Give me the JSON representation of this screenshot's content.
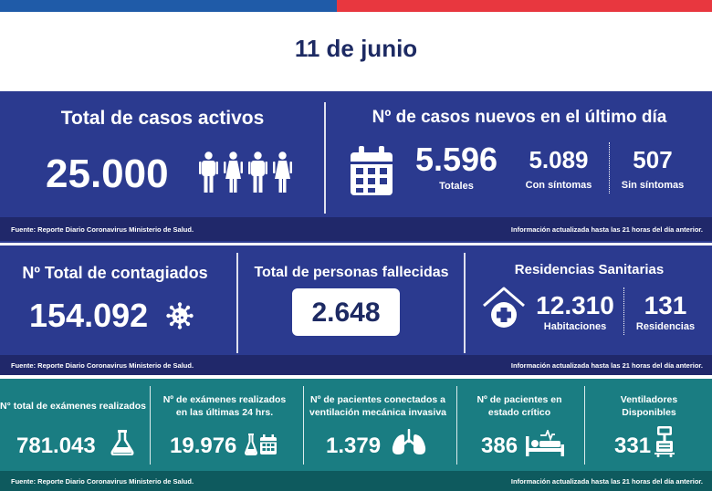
{
  "date": "11 de junio",
  "source_text": "Fuente: Reporte Diario Coronavirus Ministerio de Salud.",
  "updated_text": "Información actualizada hasta las 21 horas  del día anterior.",
  "active": {
    "title": "Total de casos activos",
    "value": "25.000",
    "icon": "people-icon"
  },
  "new_cases": {
    "title": "Nº de casos nuevos en el último día",
    "icon": "calendar-icon",
    "total_value": "5.596",
    "total_label": "Totales",
    "symptomatic_value": "5.089",
    "symptomatic_label": "Con síntomas",
    "asymptomatic_value": "507",
    "asymptomatic_label": "Sin síntomas"
  },
  "infected": {
    "title": "Nº Total de contagiados",
    "value": "154.092",
    "icon": "virus-icon"
  },
  "deaths": {
    "title": "Total de personas fallecidas",
    "value": "2.648"
  },
  "residences": {
    "title": "Residencias Sanitarias",
    "icon": "house-medical-icon",
    "rooms_value": "12.310",
    "rooms_label": "Habitaciones",
    "residences_value": "131",
    "residences_label": "Residencias"
  },
  "exams_total": {
    "title": "N° total de exámenes realizados",
    "value": "781.043",
    "icon": "flask-icon"
  },
  "exams_24h": {
    "title_line1": "Nº de exámenes realizados",
    "title_line2": "en las últimas 24 hrs.",
    "value": "19.976",
    "icon": "flask-calendar-icon"
  },
  "ventilated": {
    "title_line1": "Nº de pacientes conectados a",
    "title_line2": "ventilación mecánica invasiva",
    "value": "1.379",
    "icon": "lungs-icon"
  },
  "critical": {
    "title_line1": "Nº de pacientes  en",
    "title_line2": "estado crítico",
    "value": "386",
    "icon": "hospital-bed-icon"
  },
  "ventilators": {
    "title_line1": "Ventiladores",
    "title_line2": "Disponibles",
    "value": "331",
    "icon": "ventilator-icon"
  },
  "colors": {
    "blue_band": "#2b3a8f",
    "teal_band": "#1a7d82",
    "flag_blue": "#1f5ba8",
    "flag_red": "#e8373f",
    "title_navy": "#1d2a63"
  }
}
